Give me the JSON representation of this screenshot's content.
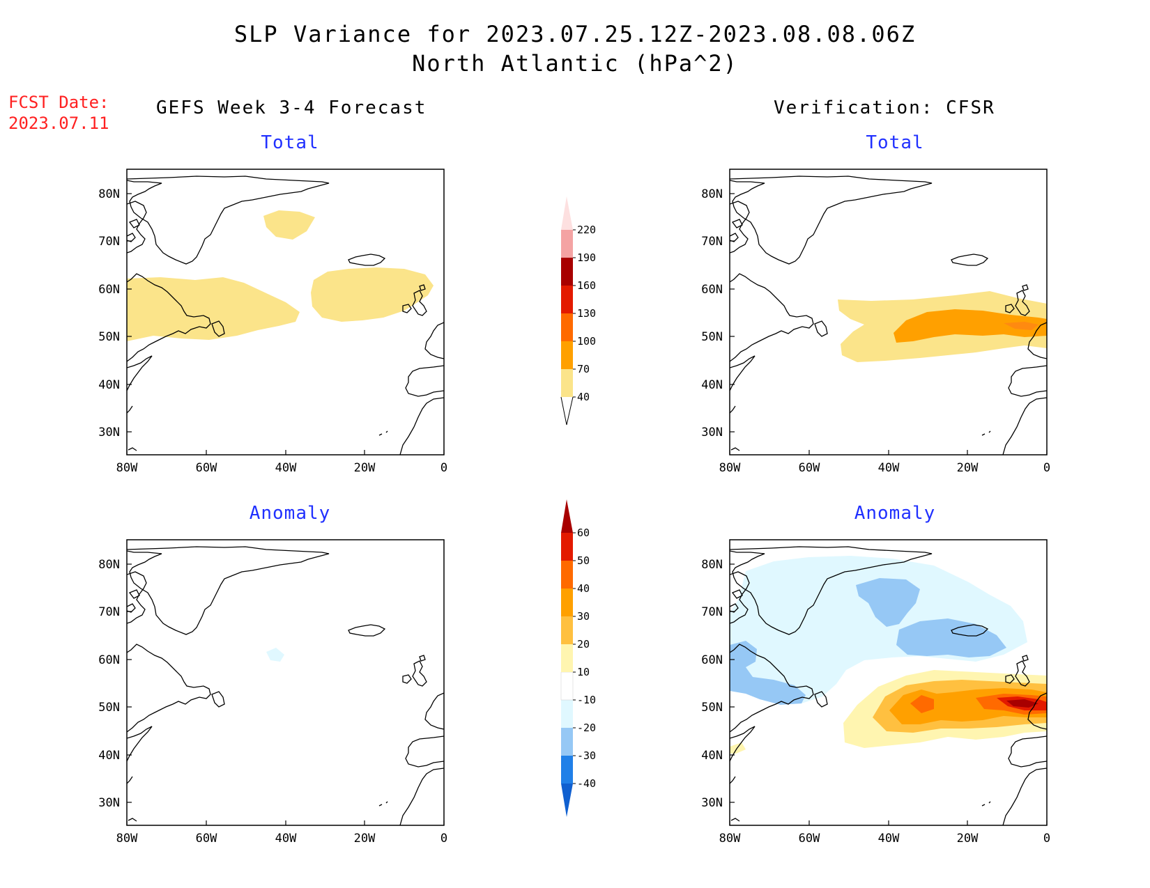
{
  "title_line1": "SLP Variance for 2023.07.25.12Z-2023.08.08.06Z",
  "title_line2": "North Atlantic (hPa^2)",
  "fcst_label": "FCST Date:",
  "fcst_date": "2023.07.11",
  "left_header": "GEFS Week 3-4 Forecast",
  "right_header": "Verification: CFSR",
  "panel_total_label": "Total",
  "panel_anomaly_label": "Anomaly",
  "lat_labels": [
    "80N",
    "70N",
    "60N",
    "50N",
    "40N",
    "30N"
  ],
  "lon_labels": [
    "80W",
    "60W",
    "40W",
    "20W",
    "0"
  ],
  "total_colorbar": {
    "labels": [
      "40",
      "70",
      "100",
      "130",
      "160",
      "190",
      "220"
    ],
    "colors": [
      "#fbe48a",
      "#ffa000",
      "#ff6a00",
      "#e31a00",
      "#a80000",
      "#f4a3a3",
      "#fde0e0"
    ]
  },
  "anomaly_colorbar": {
    "labels": [
      "-40",
      "-30",
      "-20",
      "-10",
      "10",
      "20",
      "30",
      "40",
      "50",
      "60"
    ],
    "colors": [
      "#1060d0",
      "#2080e8",
      "#96c8f5",
      "#e0f8ff",
      "#ffffff",
      "#fff5b0",
      "#ffc040",
      "#ffa000",
      "#ff6a00",
      "#e31a00",
      "#a80000"
    ]
  },
  "panels": [
    {
      "id": "forecast-total",
      "source": "GEFS Week 3-4 Forecast",
      "field": "Total"
    },
    {
      "id": "verification-total",
      "source": "Verification: CFSR",
      "field": "Total"
    },
    {
      "id": "forecast-anomaly",
      "source": "GEFS Week 3-4 Forecast",
      "field": "Anomaly"
    },
    {
      "id": "verification-anomaly",
      "source": "Verification: CFSR",
      "field": "Anomaly"
    }
  ]
}
